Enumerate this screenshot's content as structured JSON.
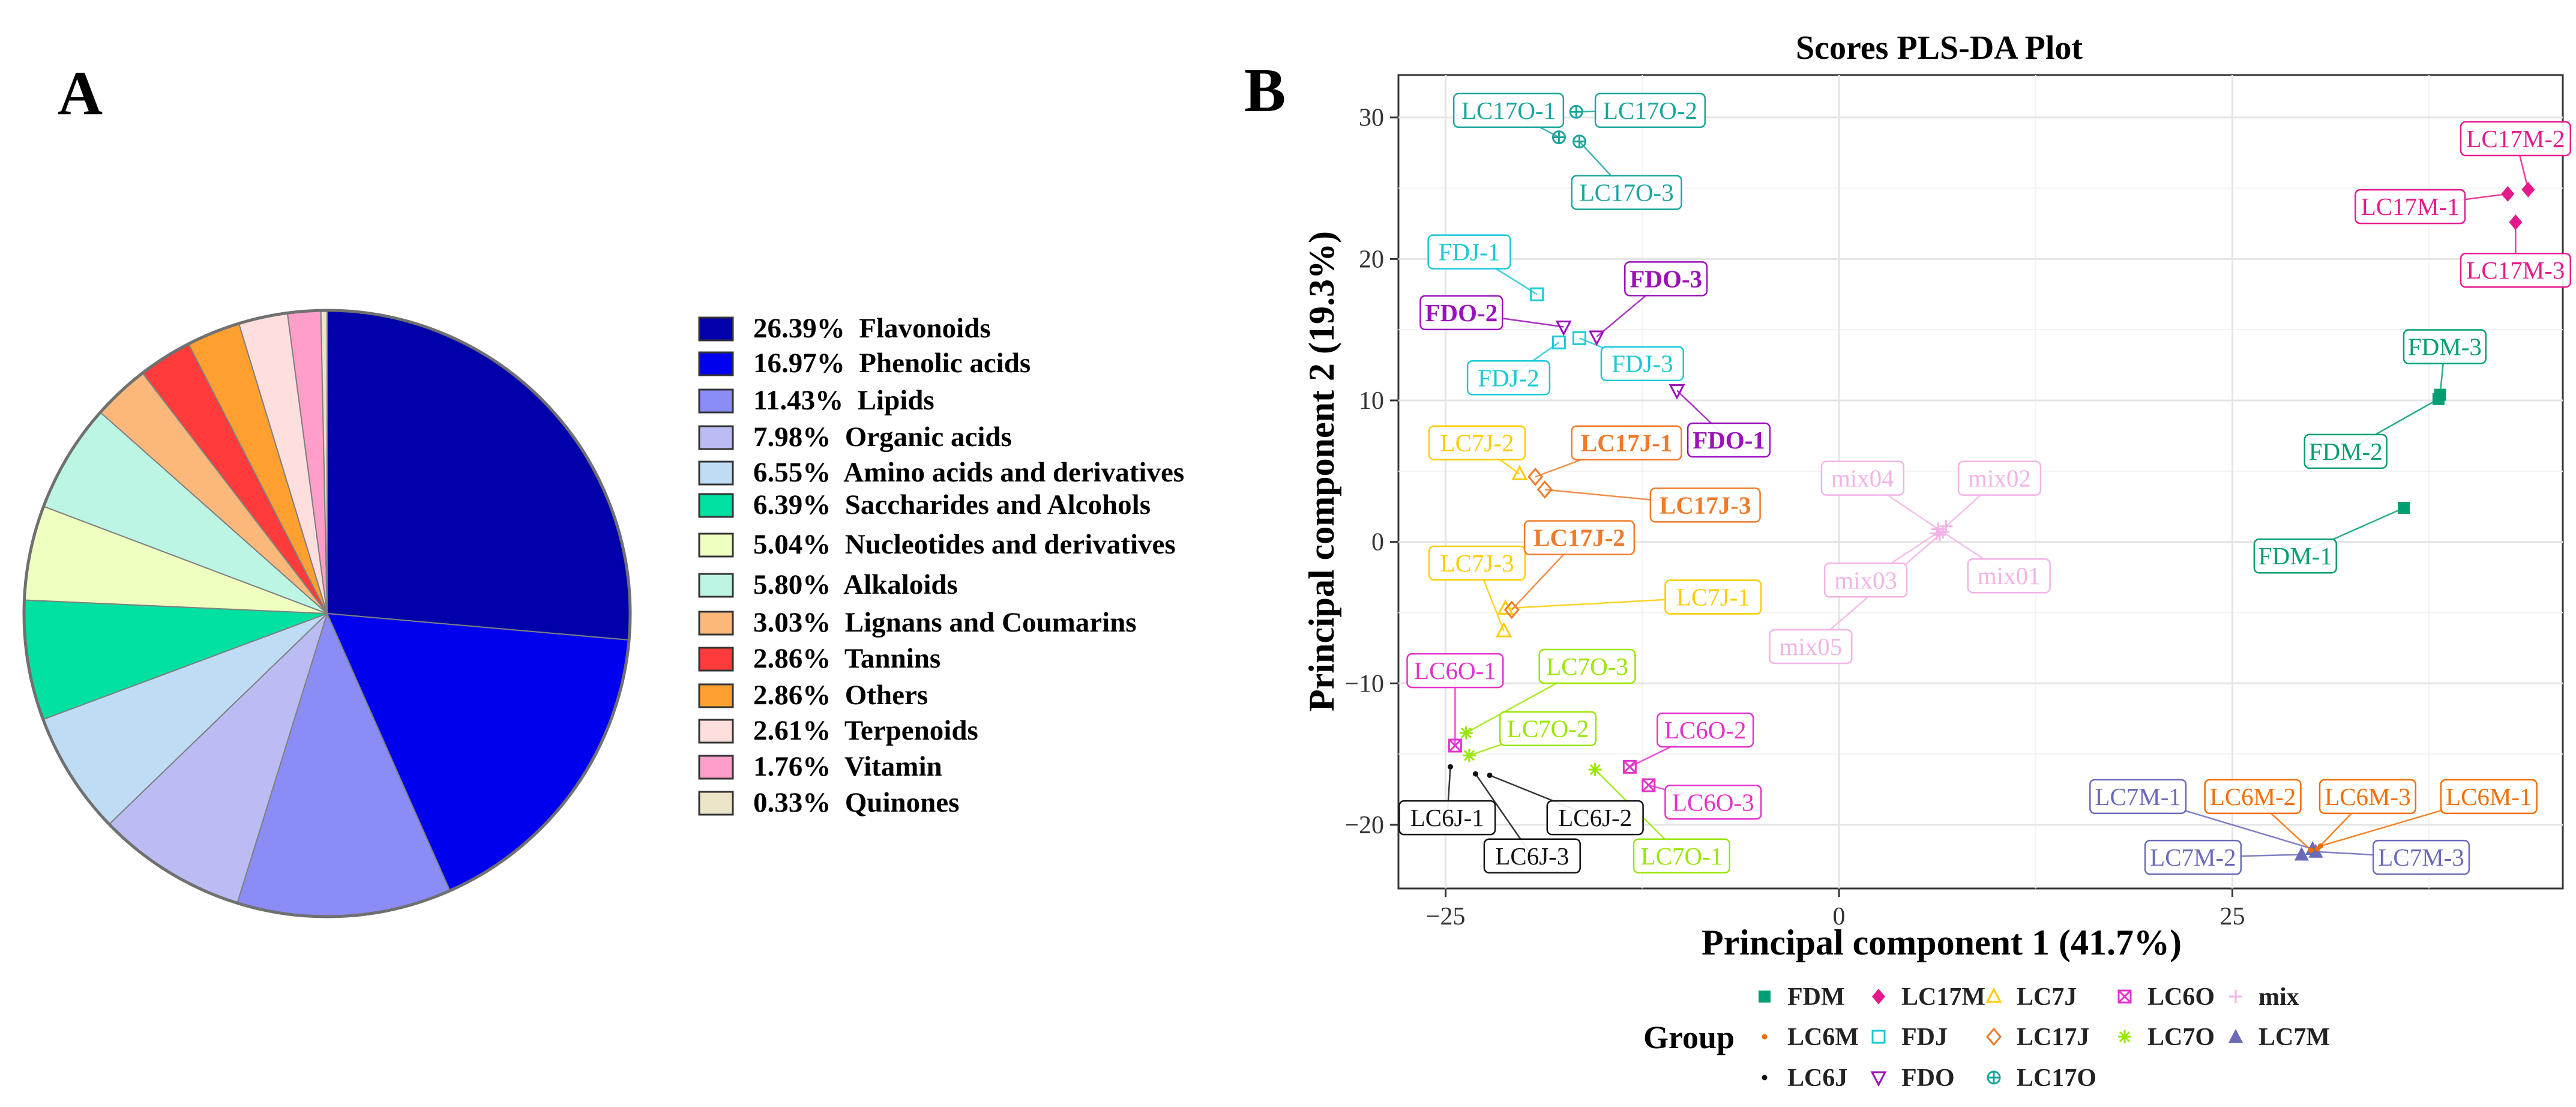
{
  "chart_data": [
    {
      "type": "pie",
      "panel_label": "A",
      "slices": [
        {
          "label": "Flavonoids",
          "percent_label": "26.39%",
          "value": 26.39,
          "color": "#0000aa"
        },
        {
          "label": "Phenolic acids",
          "percent_label": "16.97%",
          "value": 16.97,
          "color": "#0000ee"
        },
        {
          "label": "Lipids",
          "percent_label": "11.43%",
          "value": 11.43,
          "color": "#8b8cf5"
        },
        {
          "label": "Organic acids",
          "percent_label": "7.98%",
          "value": 7.98,
          "color": "#bcbcf5"
        },
        {
          "label": "Amino acids and derivatives",
          "percent_label": "6.55%",
          "value": 6.55,
          "color": "#bfdcf5"
        },
        {
          "label": "Saccharides and Alcohols",
          "percent_label": "6.39%",
          "value": 6.39,
          "color": "#00e0a0"
        },
        {
          "label": "Nucleotides and derivatives",
          "percent_label": "5.04%",
          "value": 5.04,
          "color": "#eeffc0"
        },
        {
          "label": "Alkaloids",
          "percent_label": "5.80%",
          "value": 5.8,
          "color": "#bdf5e4"
        },
        {
          "label": "Lignans and Coumarins",
          "percent_label": "3.03%",
          "value": 3.03,
          "color": "#fbb87a"
        },
        {
          "label": "Tannins",
          "percent_label": "2.86%",
          "value": 2.86,
          "color": "#ff3b3b"
        },
        {
          "label": "Others",
          "percent_label": "2.86%",
          "value": 2.86,
          "color": "#ffa030"
        },
        {
          "label": "Terpenoids",
          "percent_label": "2.61%",
          "value": 2.61,
          "color": "#ffdede"
        },
        {
          "label": "Vitamin",
          "percent_label": "1.76%",
          "value": 1.76,
          "color": "#ff9ec8"
        },
        {
          "label": "Quinones",
          "percent_label": "0.33%",
          "value": 0.33,
          "color": "#ece6c8"
        }
      ]
    },
    {
      "type": "scatter",
      "panel_label": "B",
      "title": "Scores PLS-DA Plot",
      "xlabel": "Principal component 1 (41.7%)",
      "ylabel": "Principal component 2 (19.3%)",
      "xlim": [
        -28,
        46
      ],
      "ylim": [
        -24.5,
        33
      ],
      "xticks": [
        -25,
        0,
        25
      ],
      "yticks": [
        -20,
        -10,
        0,
        10,
        20,
        30
      ],
      "grid": true,
      "legend_title": "Group",
      "legend_position": "bottom",
      "legend_order": [
        "FDM",
        "LC17M",
        "LC7J",
        "LC6O",
        "mix",
        "LC6M",
        "FDJ",
        "LC17J",
        "LC7O",
        "LC7M",
        "LC6J",
        "FDO",
        "LC17O"
      ],
      "groups": {
        "FDM": {
          "color": "#009e73",
          "marker": "square-filled"
        },
        "LC17M": {
          "color": "#e41a8c",
          "marker": "diamond-filled"
        },
        "LC7J": {
          "color": "#ffcc00",
          "marker": "triangle-open"
        },
        "LC6O": {
          "color": "#e530cc",
          "marker": "square-x"
        },
        "mix": {
          "color": "#f2b3e6",
          "marker": "plus"
        },
        "LC6M": {
          "color": "#f26d00",
          "marker": "dot"
        },
        "FDJ": {
          "color": "#17c9d6",
          "marker": "square-open"
        },
        "LC17J": {
          "color": "#f07a2a",
          "marker": "diamond-open"
        },
        "LC7O": {
          "color": "#99e600",
          "marker": "asterisk"
        },
        "LC7M": {
          "color": "#6a6ab8",
          "marker": "triangle-filled"
        },
        "LC6J": {
          "color": "#111111",
          "marker": "dot"
        },
        "FDO": {
          "color": "#9b10bb",
          "marker": "triangle-down-open"
        },
        "LC17O": {
          "color": "#1aa59b",
          "marker": "circle-plus"
        }
      },
      "points": [
        {
          "group": "LC17O",
          "label": "LC17O-1",
          "x": -17.8,
          "y": 28.6,
          "lx": -21,
          "ly": 30.5
        },
        {
          "group": "LC17O",
          "label": "LC17O-2",
          "x": -16.7,
          "y": 30.4,
          "lx": -12,
          "ly": 30.5
        },
        {
          "group": "LC17O",
          "label": "LC17O-3",
          "x": -16.5,
          "y": 28.3,
          "lx": -13.5,
          "ly": 24.7
        },
        {
          "group": "LC17M",
          "label": "LC17M-2",
          "x": 43.8,
          "y": 24.9,
          "lx": 43,
          "ly": 28.5
        },
        {
          "group": "LC17M",
          "label": "LC17M-1",
          "x": 42.5,
          "y": 24.6,
          "lx": 36.3,
          "ly": 23.7
        },
        {
          "group": "LC17M",
          "label": "LC17M-3",
          "x": 43,
          "y": 22.6,
          "lx": 43,
          "ly": 19.2
        },
        {
          "group": "FDJ",
          "label": "FDJ-1",
          "x": -19.2,
          "y": 17.5,
          "lx": -23.5,
          "ly": 20.5
        },
        {
          "group": "FDJ",
          "label": "FDJ-2",
          "x": -17.8,
          "y": 14.1,
          "lx": -21,
          "ly": 11.6
        },
        {
          "group": "FDJ",
          "label": "FDJ-3",
          "x": -16.5,
          "y": 14.4,
          "lx": -12.5,
          "ly": 12.6
        },
        {
          "group": "FDO",
          "label": "FDO-3",
          "x": -15.4,
          "y": 14.5,
          "lx": -11,
          "ly": 18.6
        },
        {
          "group": "FDO",
          "label": "FDO-2",
          "x": -17.5,
          "y": 15.2,
          "lx": -24,
          "ly": 16.2
        },
        {
          "group": "FDO",
          "label": "FDO-1",
          "x": -10.3,
          "y": 10.7,
          "lx": -7,
          "ly": 7.2
        },
        {
          "group": "FDM",
          "label": "FDM-3",
          "x": 38.2,
          "y": 10.4,
          "lx": 38.5,
          "ly": 13.8
        },
        {
          "group": "FDM",
          "label": "FDM-2",
          "x": 38.1,
          "y": 10.1,
          "lx": 32.2,
          "ly": 6.4
        },
        {
          "group": "FDM",
          "label": "FDM-1",
          "x": 35.9,
          "y": 2.4,
          "lx": 29,
          "ly": -1
        },
        {
          "group": "LC7J",
          "label": "LC7J-2",
          "x": -20.3,
          "y": 4.8,
          "lx": -23,
          "ly": 7
        },
        {
          "group": "LC7J",
          "label": "LC7J-3",
          "x": -21.3,
          "y": -6.3,
          "lx": -23,
          "ly": -1.5
        },
        {
          "group": "LC7J",
          "label": "LC7J-1",
          "x": -21.2,
          "y": -4.7,
          "lx": -8,
          "ly": -3.9
        },
        {
          "group": "LC17J",
          "label": "LC17J-1",
          "x": -19.3,
          "y": 4.6,
          "lx": -13.5,
          "ly": 7
        },
        {
          "group": "LC17J",
          "label": "LC17J-3",
          "x": -18.7,
          "y": 3.7,
          "lx": -8.5,
          "ly": 2.6
        },
        {
          "group": "LC17J",
          "label": "LC17J-2",
          "x": -20.8,
          "y": -4.8,
          "lx": -16.5,
          "ly": 0.3
        },
        {
          "group": "mix",
          "label": "mix04",
          "x": 6.3,
          "y": 0.9,
          "lx": 1.5,
          "ly": 4.5
        },
        {
          "group": "mix",
          "label": "mix02",
          "x": 6.8,
          "y": 1.1,
          "lx": 10.2,
          "ly": 4.5
        },
        {
          "group": "mix",
          "label": "mix03",
          "x": 6.2,
          "y": 0.6,
          "lx": 1.7,
          "ly": -2.7
        },
        {
          "group": "mix",
          "label": "mix01",
          "x": 6.6,
          "y": 0.7,
          "lx": 10.8,
          "ly": -2.4
        },
        {
          "group": "mix",
          "label": "mix05",
          "x": 6.4,
          "y": 0.5,
          "lx": -1.8,
          "ly": -7.4
        },
        {
          "group": "LC6O",
          "label": "LC6O-1",
          "x": -24.4,
          "y": -14.4,
          "lx": -24.4,
          "ly": -9.1
        },
        {
          "group": "LC6O",
          "label": "LC6O-2",
          "x": -13.3,
          "y": -15.9,
          "lx": -8.5,
          "ly": -13.3
        },
        {
          "group": "LC6O",
          "label": "LC6O-3",
          "x": -12.1,
          "y": -17.2,
          "lx": -8,
          "ly": -18.4
        },
        {
          "group": "LC7O",
          "label": "LC7O-3",
          "x": -23.7,
          "y": -13.5,
          "lx": -16,
          "ly": -8.8
        },
        {
          "group": "LC7O",
          "label": "LC7O-2",
          "x": -23.5,
          "y": -15.1,
          "lx": -18.5,
          "ly": -13.2
        },
        {
          "group": "LC7O",
          "label": "LC7O-1",
          "x": -15.5,
          "y": -16.1,
          "lx": -10,
          "ly": -22.2
        },
        {
          "group": "LC6J",
          "label": "LC6J-1",
          "x": -24.7,
          "y": -15.9,
          "lx": -24.9,
          "ly": -19.5
        },
        {
          "group": "LC6J",
          "label": "LC6J-2",
          "x": -22.2,
          "y": -16.5,
          "lx": -15.5,
          "ly": -19.5
        },
        {
          "group": "LC6J",
          "label": "LC6J-3",
          "x": -23.1,
          "y": -16.4,
          "lx": -19.5,
          "ly": -22.2
        },
        {
          "group": "LC7M",
          "label": "LC7M-1",
          "x": 30.1,
          "y": -21.7,
          "lx": 19,
          "ly": -18
        },
        {
          "group": "LC7M",
          "label": "LC7M-2",
          "x": 29.4,
          "y": -22.1,
          "lx": 22.5,
          "ly": -22.3
        },
        {
          "group": "LC7M",
          "label": "LC7M-3",
          "x": 30.3,
          "y": -21.9,
          "lx": 37,
          "ly": -22.3
        },
        {
          "group": "LC6M",
          "label": "LC6M-2",
          "x": 30,
          "y": -21.8,
          "lx": 26.3,
          "ly": -18
        },
        {
          "group": "LC6M",
          "label": "LC6M-3",
          "x": 30.4,
          "y": -21.7,
          "lx": 33.6,
          "ly": -18
        },
        {
          "group": "LC6M",
          "label": "LC6M-1",
          "x": 30.6,
          "y": -21.5,
          "lx": 41.3,
          "ly": -18
        }
      ]
    }
  ]
}
